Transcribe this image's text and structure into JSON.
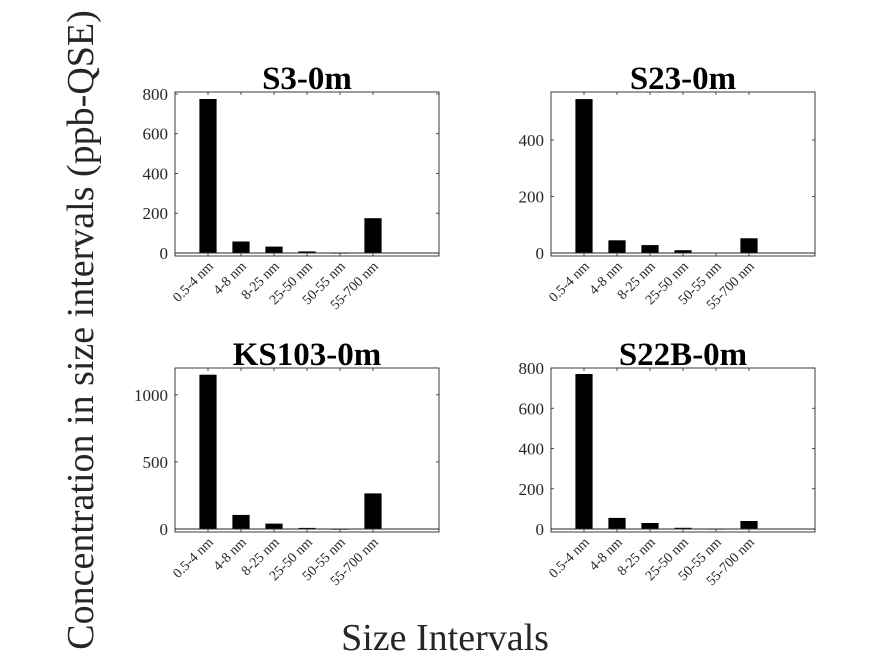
{
  "figure": {
    "ylabel": "Concentration in size intervals (ppb-QSE)",
    "xlabel": "Size Intervals"
  },
  "chart_data": [
    {
      "type": "bar",
      "title": "S3-0m",
      "categories": [
        "0.5-4 nm",
        "4-8 nm",
        "8-25 nm",
        "25-50 nm",
        "50-55 nm",
        "55-700 nm"
      ],
      "values": [
        775,
        58,
        32,
        8,
        1,
        175
      ],
      "ylim": [
        0,
        810
      ],
      "yticks": [
        0,
        200,
        400,
        600,
        800
      ]
    },
    {
      "type": "bar",
      "title": "S23-0m",
      "categories": [
        "0.5-4 nm",
        "4-8 nm",
        "8-25 nm",
        "25-50 nm",
        "50-55 nm",
        "55-700 nm"
      ],
      "values": [
        545,
        45,
        28,
        10,
        1,
        52
      ],
      "ylim": [
        0,
        570
      ],
      "yticks": [
        0,
        200,
        400
      ]
    },
    {
      "type": "bar",
      "title": "KS103-0m",
      "categories": [
        "0.5-4 nm",
        "4-8 nm",
        "8-25 nm",
        "25-50 nm",
        "50-55 nm",
        "55-700 nm"
      ],
      "values": [
        1150,
        105,
        40,
        8,
        1,
        265
      ],
      "ylim": [
        0,
        1200
      ],
      "yticks": [
        0,
        500,
        1000
      ]
    },
    {
      "type": "bar",
      "title": "S22B-0m",
      "categories": [
        "0.5-4 nm",
        "4-8 nm",
        "8-25 nm",
        "25-50 nm",
        "50-55 nm",
        "55-700 nm"
      ],
      "values": [
        770,
        55,
        30,
        6,
        1,
        40
      ],
      "ylim": [
        0,
        800
      ],
      "yticks": [
        0,
        200,
        400,
        600,
        800
      ]
    }
  ]
}
